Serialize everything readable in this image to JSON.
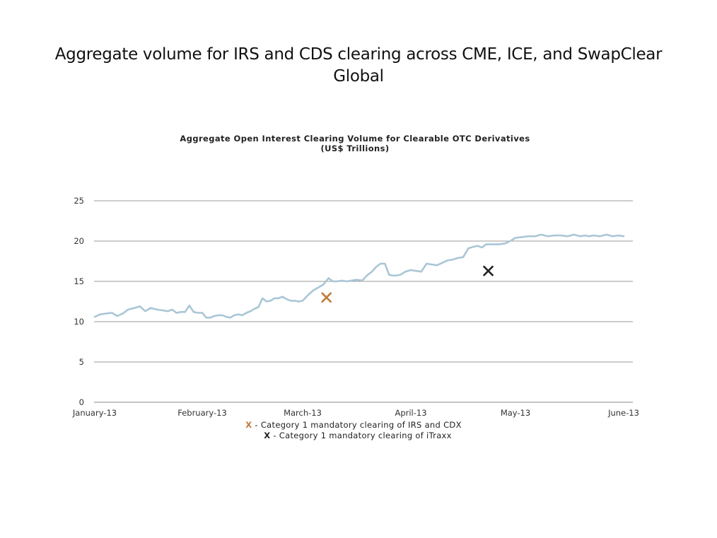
{
  "slide": {
    "title": "Aggregate volume for IRS and CDS clearing across CME, ICE, and SwapClear Global"
  },
  "chart_data": {
    "type": "line",
    "title": "Aggregate Open Interest Clearing Volume for Clearable OTC Derivatives",
    "subtitle": "(US$ Trillions)",
    "xlabel": "",
    "ylabel": "",
    "ylim": [
      0,
      25
    ],
    "yticks": [
      0,
      5,
      10,
      15,
      20,
      25
    ],
    "xticks": [
      "January-13",
      "February-13",
      "March-13",
      "April-13",
      "May-13",
      "June-13"
    ],
    "grid": true,
    "line_color": "#a9c6d6",
    "series": [
      {
        "x": [
          0,
          0.05,
          0.1,
          0.16,
          0.21,
          0.26,
          0.31,
          0.37,
          0.42,
          0.47,
          0.52,
          0.58,
          0.63,
          0.68,
          0.72,
          0.76,
          0.8,
          0.84,
          0.88,
          0.92,
          0.96,
          1.0,
          1.04,
          1.08,
          1.12,
          1.16,
          1.2,
          1.24,
          1.28,
          1.32,
          1.36,
          1.4,
          1.44,
          1.48,
          1.52,
          1.56,
          1.6,
          1.64,
          1.68,
          1.72,
          1.76,
          1.8,
          1.84,
          1.88,
          1.92,
          1.96,
          2.0,
          2.05,
          2.1,
          2.14,
          2.19,
          2.24,
          2.28,
          2.32,
          2.36,
          2.41,
          2.45,
          2.5,
          2.55,
          2.6,
          2.64,
          2.68,
          2.72,
          2.76,
          2.8,
          2.85,
          2.9,
          2.95,
          3.0,
          3.05,
          3.1,
          3.15,
          3.2,
          3.25,
          3.3,
          3.35,
          3.4,
          3.45,
          3.5,
          3.55,
          3.6,
          3.64,
          3.68,
          3.72,
          3.78,
          3.84,
          3.9,
          3.95,
          4.0,
          4.06,
          4.12,
          4.18,
          4.24,
          4.3,
          4.36,
          4.42,
          4.48,
          4.54,
          4.6,
          4.64,
          4.68,
          4.72,
          4.78,
          4.84,
          4.9,
          4.95,
          5.0
        ],
        "values": [
          10.6,
          10.9,
          11.0,
          11.1,
          10.7,
          11.0,
          11.5,
          11.7,
          11.9,
          11.3,
          11.7,
          11.5,
          11.4,
          11.3,
          11.5,
          11.1,
          11.2,
          11.2,
          12.0,
          11.2,
          11.1,
          11.1,
          10.5,
          10.5,
          10.7,
          10.8,
          10.8,
          10.6,
          10.5,
          10.8,
          10.9,
          10.8,
          11.1,
          11.3,
          11.6,
          11.8,
          12.9,
          12.5,
          12.6,
          12.9,
          12.9,
          13.1,
          12.8,
          12.6,
          12.6,
          12.5,
          12.6,
          13.3,
          13.9,
          14.2,
          14.6,
          15.4,
          15.0,
          15.0,
          15.1,
          15.0,
          15.1,
          15.2,
          15.1,
          15.8,
          16.2,
          16.8,
          17.2,
          17.2,
          15.8,
          15.7,
          15.8,
          16.2,
          16.4,
          16.3,
          16.2,
          17.2,
          17.1,
          17.0,
          17.3,
          17.6,
          17.7,
          17.9,
          18.0,
          19.1,
          19.3,
          19.4,
          19.2,
          19.6,
          19.6,
          19.6,
          19.7,
          20.0,
          20.4,
          20.5,
          20.6,
          20.6,
          20.8,
          20.6,
          20.7,
          20.7,
          20.6,
          20.8,
          20.6,
          20.7,
          20.6,
          20.7,
          20.6,
          20.8,
          20.6,
          20.7,
          20.6
        ]
      }
    ],
    "markers": [
      {
        "x": 2.22,
        "y": 13.0,
        "symbol": "X",
        "color": "#c07a3a",
        "label": "Category 1 mandatory clearing of IRS and CDX"
      },
      {
        "x": 3.74,
        "y": 16.3,
        "symbol": "X",
        "color": "#222222",
        "label": "Category 1 mandatory clearing of iTraxx"
      }
    ]
  },
  "legend": {
    "items": [
      {
        "symbol": "X",
        "text": "- Category 1 mandatory clearing of IRS and CDX",
        "color": "#c07a3a"
      },
      {
        "symbol": "X",
        "text": "- Category 1 mandatory clearing of iTraxx",
        "color": "#222222"
      }
    ]
  }
}
